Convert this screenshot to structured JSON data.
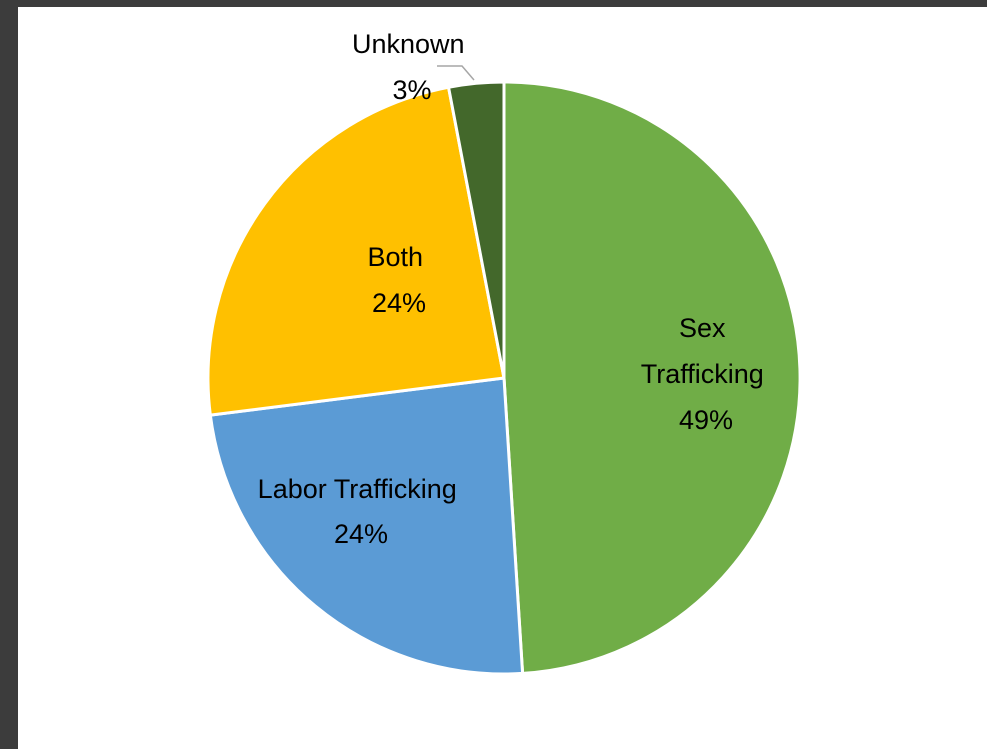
{
  "chart_data": {
    "type": "pie",
    "slices": [
      {
        "name": "Sex Trafficking",
        "label_lines": [
          "Sex",
          "Trafficking"
        ],
        "value": 49,
        "percent_label": "49%",
        "color": "#70ad47"
      },
      {
        "name": "Labor Trafficking",
        "label_lines": [
          "Labor Trafficking"
        ],
        "value": 24,
        "percent_label": "24%",
        "color": "#5b9bd5"
      },
      {
        "name": "Both",
        "label_lines": [
          "Both"
        ],
        "value": 24,
        "percent_label": "24%",
        "color": "#ffc000"
      },
      {
        "name": "Unknown",
        "label_lines": [
          "Unknown"
        ],
        "value": 3,
        "percent_label": "3%",
        "color": "#43682b"
      }
    ],
    "start_angle_deg": 0,
    "direction": "clockwise",
    "legend": "none",
    "data_labels": "category name and percentage"
  }
}
